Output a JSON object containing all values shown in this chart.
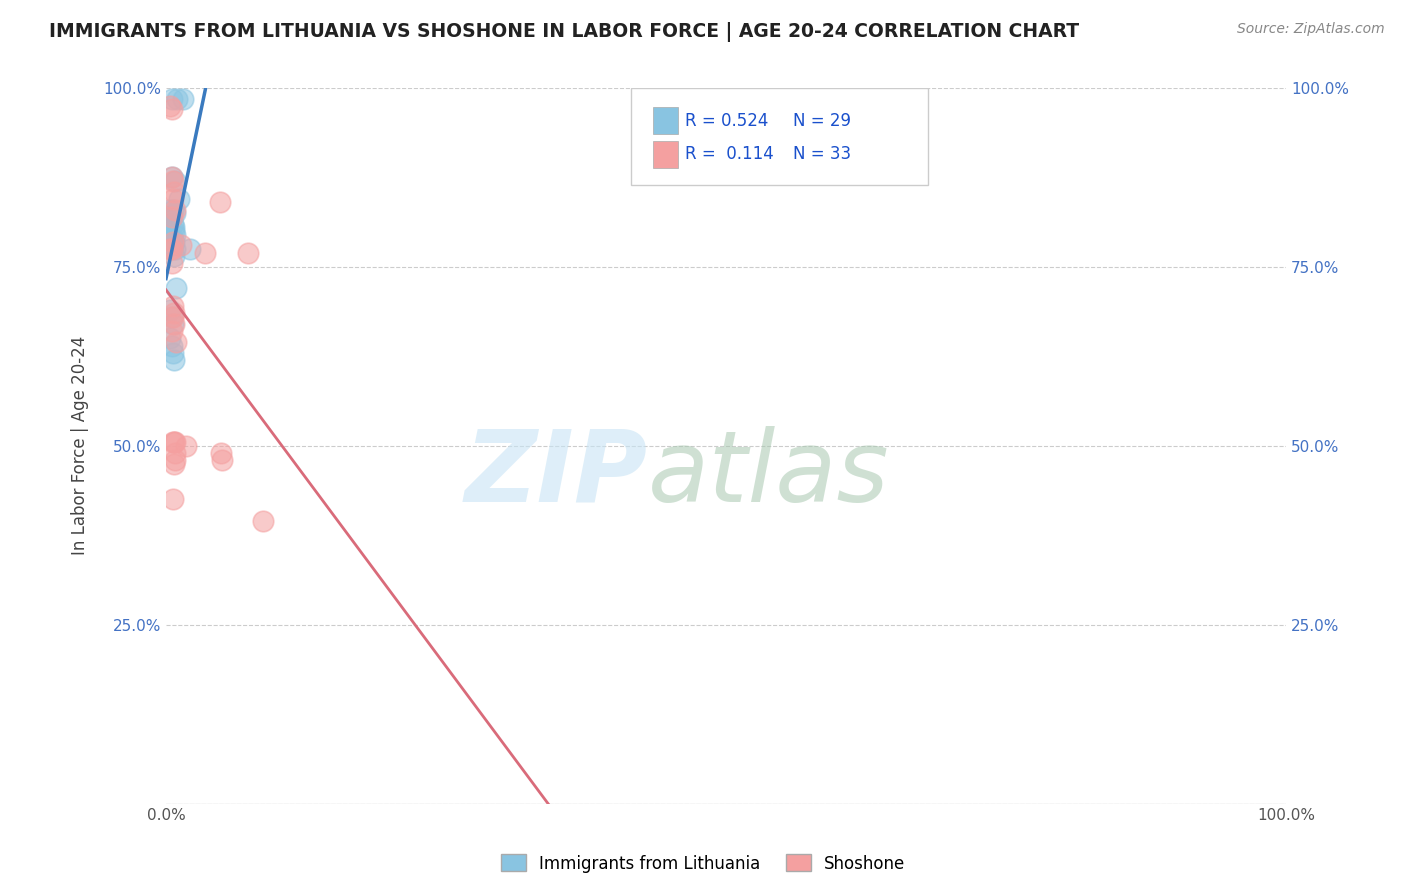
{
  "title": "IMMIGRANTS FROM LITHUANIA VS SHOSHONE IN LABOR FORCE | AGE 20-24 CORRELATION CHART",
  "source": "Source: ZipAtlas.com",
  "ylabel": "In Labor Force | Age 20-24",
  "xlim": [
    0.0,
    1.0
  ],
  "ylim": [
    0.0,
    1.0
  ],
  "xticks": [
    0.0,
    0.1,
    0.2,
    0.3,
    0.4,
    0.5,
    0.6,
    0.7,
    0.8,
    0.9,
    1.0
  ],
  "xtick_labels": [
    "0.0%",
    "",
    "",
    "",
    "",
    "",
    "",
    "",
    "",
    "",
    "100.0%"
  ],
  "yticks": [
    0.0,
    0.25,
    0.5,
    0.75,
    1.0
  ],
  "ytick_labels_left": [
    "",
    "25.0%",
    "50.0%",
    "75.0%",
    "100.0%"
  ],
  "ytick_labels_right": [
    "",
    "25.0%",
    "50.0%",
    "75.0%",
    "100.0%"
  ],
  "legend_r_blue": "R = 0.524",
  "legend_n_blue": "N = 29",
  "legend_r_pink": "R =  0.114",
  "legend_n_pink": "N = 33",
  "blue_color": "#89c4e1",
  "pink_color": "#f4a0a0",
  "blue_line_color": "#3a7abf",
  "pink_line_color": "#d96b7a",
  "watermark_zip": "ZIP",
  "watermark_atlas": "atlas",
  "blue_scatter_x": [
    0.005,
    0.01,
    0.015,
    0.005,
    0.008,
    0.003,
    0.006,
    0.008,
    0.005,
    0.004,
    0.006,
    0.007,
    0.007,
    0.008,
    0.005,
    0.007,
    0.006,
    0.008,
    0.021,
    0.007,
    0.012,
    0.009,
    0.004,
    0.005,
    0.006,
    0.004,
    0.005,
    0.006,
    0.007
  ],
  "blue_scatter_y": [
    0.985,
    0.985,
    0.985,
    0.875,
    0.87,
    0.83,
    0.83,
    0.825,
    0.82,
    0.815,
    0.81,
    0.805,
    0.8,
    0.795,
    0.79,
    0.785,
    0.78,
    0.775,
    0.775,
    0.765,
    0.845,
    0.72,
    0.69,
    0.68,
    0.67,
    0.65,
    0.64,
    0.63,
    0.62
  ],
  "pink_scatter_x": [
    0.004,
    0.005,
    0.006,
    0.005,
    0.007,
    0.006,
    0.048,
    0.008,
    0.005,
    0.006,
    0.004,
    0.005,
    0.013,
    0.005,
    0.006,
    0.007,
    0.006,
    0.007,
    0.005,
    0.009,
    0.008,
    0.018,
    0.008,
    0.049,
    0.05,
    0.008,
    0.007,
    0.006,
    0.073,
    0.035,
    0.007,
    0.006,
    0.087
  ],
  "pink_scatter_y": [
    0.975,
    0.97,
    0.87,
    0.875,
    0.855,
    0.845,
    0.84,
    0.83,
    0.82,
    0.785,
    0.775,
    0.775,
    0.78,
    0.755,
    0.695,
    0.685,
    0.68,
    0.67,
    0.66,
    0.645,
    0.505,
    0.5,
    0.49,
    0.49,
    0.48,
    0.48,
    0.475,
    0.425,
    0.77,
    0.77,
    0.505,
    0.505,
    0.395
  ],
  "background_color": "#ffffff",
  "grid_color": "#cccccc",
  "legend_label_blue": "Immigrants from Lithuania",
  "legend_label_pink": "Shoshone"
}
